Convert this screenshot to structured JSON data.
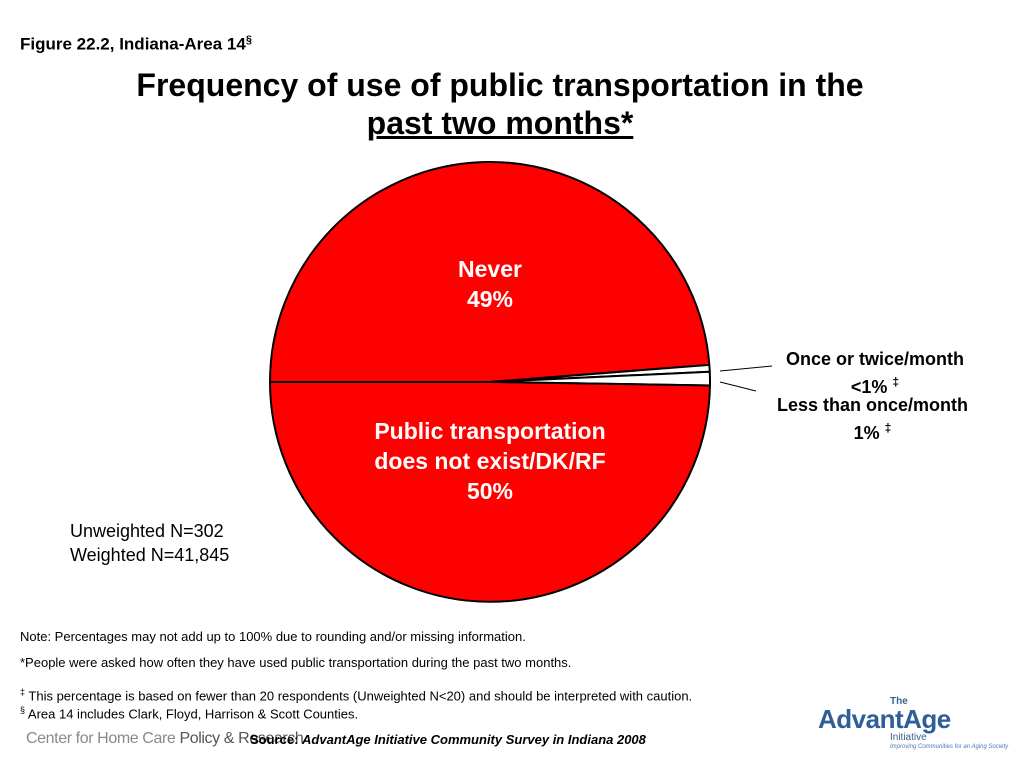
{
  "figure_label": {
    "text": "Figure 22.2, Indiana-Area 14",
    "mark": "§"
  },
  "title": {
    "line1": "Frequency of use of public transportation in the",
    "line2": "past two months*"
  },
  "chart_data": {
    "type": "pie",
    "slices": [
      {
        "label": "Never",
        "value_text": "49%",
        "value": 49,
        "color": "#ff0000",
        "footnote": ""
      },
      {
        "label": "Once or twice/month",
        "value_text": "<1%",
        "value": 0.5,
        "color": "#ffffff",
        "footnote": "‡"
      },
      {
        "label": "Less than once/month",
        "value_text": "1%",
        "value": 1,
        "color": "#ffffff",
        "footnote": "‡"
      },
      {
        "label": "Public transportation does not exist/DK/RF",
        "value_text": "50%",
        "value": 50,
        "color": "#ff0000",
        "footnote": ""
      }
    ]
  },
  "sample": {
    "unweighted": "Unweighted N=302",
    "weighted": "Weighted N=41,845"
  },
  "notes": {
    "rounding": "Note: Percentages may not add up to 100% due to rounding and/or missing information.",
    "question": "*People were asked how often they have used public transportation during the past two months.",
    "caution_mark": "‡",
    "caution": " This percentage is based on fewer than 20 respondents (Unweighted N<20) and should be interpreted with caution.",
    "area_mark": "§",
    "area": " Area 14 includes Clark, Floyd, Harrison & Scott Counties."
  },
  "source": {
    "label": "Source:",
    "text": "AdvantAge Initiative Community Survey in Indiana 2008"
  },
  "logos": {
    "cfhc_part1": "Center for Home Care ",
    "cfhc_part2": "Policy & Research",
    "aa_the": "The",
    "aa_name": "AdvantAge",
    "aa_initiative": "Initiative",
    "aa_tagline": "Improving Communities for an Aging Society"
  }
}
